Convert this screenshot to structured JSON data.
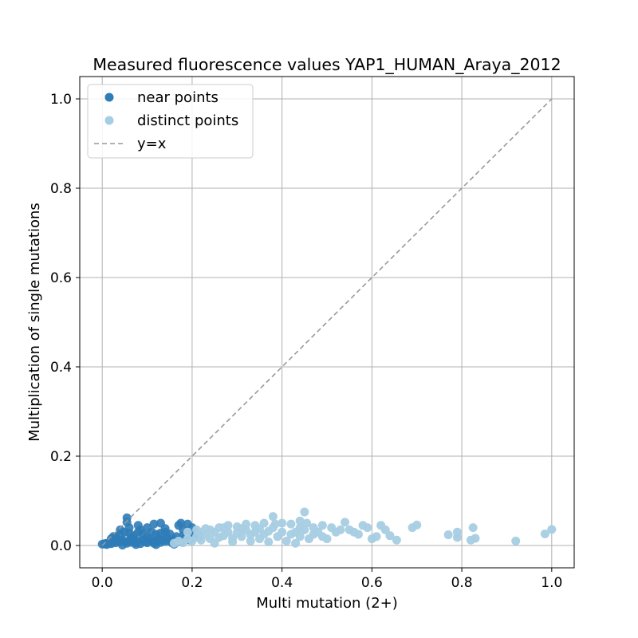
{
  "chart_data": {
    "type": "scatter",
    "title": "Measured fluorescence values YAP1_HUMAN_Araya_2012",
    "xlabel": "Multi mutation (2+)",
    "ylabel": "Multiplication of single mutations",
    "xlim": [
      -0.05,
      1.05
    ],
    "ylim": [
      -0.05,
      1.05
    ],
    "x_ticks": [
      "0.0",
      "0.2",
      "0.4",
      "0.6",
      "0.8",
      "1.0"
    ],
    "y_ticks": [
      "0.0",
      "0.2",
      "0.4",
      "0.6",
      "0.8",
      "1.0"
    ],
    "grid": true,
    "legend_position": "upper-left",
    "series": [
      {
        "name": "near points",
        "color": "#2f7cb7",
        "points": [
          [
            0.0,
            0.003
          ],
          [
            0.005,
            0.004
          ],
          [
            0.01,
            0.005
          ],
          [
            0.015,
            0.006
          ],
          [
            0.02,
            0.004
          ],
          [
            0.025,
            0.008
          ],
          [
            0.03,
            0.006
          ],
          [
            0.035,
            0.01
          ],
          [
            0.04,
            0.008
          ],
          [
            0.045,
            0.012
          ],
          [
            0.05,
            0.009
          ],
          [
            0.055,
            0.005
          ],
          [
            0.06,
            0.011
          ],
          [
            0.065,
            0.007
          ],
          [
            0.07,
            0.013
          ],
          [
            0.075,
            0.006
          ],
          [
            0.08,
            0.01
          ],
          [
            0.085,
            0.004
          ],
          [
            0.09,
            0.012
          ],
          [
            0.095,
            0.008
          ],
          [
            0.1,
            0.006
          ],
          [
            0.105,
            0.014
          ],
          [
            0.11,
            0.009
          ],
          [
            0.115,
            0.005
          ],
          [
            0.12,
            0.011
          ],
          [
            0.125,
            0.016
          ],
          [
            0.13,
            0.007
          ],
          [
            0.135,
            0.012
          ],
          [
            0.14,
            0.009
          ],
          [
            0.145,
            0.018
          ],
          [
            0.15,
            0.01
          ],
          [
            0.155,
            0.006
          ],
          [
            0.16,
            0.014
          ],
          [
            0.165,
            0.02
          ],
          [
            0.17,
            0.012
          ],
          [
            0.175,
            0.008
          ],
          [
            0.18,
            0.022
          ],
          [
            0.185,
            0.016
          ],
          [
            0.19,
            0.026
          ],
          [
            0.195,
            0.012
          ],
          [
            0.2,
            0.028
          ],
          [
            0.205,
            0.018
          ],
          [
            0.21,
            0.03
          ],
          [
            0.215,
            0.02
          ],
          [
            0.02,
            0.015
          ],
          [
            0.03,
            0.02
          ],
          [
            0.04,
            0.025
          ],
          [
            0.05,
            0.03
          ],
          [
            0.06,
            0.028
          ],
          [
            0.07,
            0.022
          ],
          [
            0.08,
            0.03
          ],
          [
            0.09,
            0.026
          ],
          [
            0.1,
            0.02
          ],
          [
            0.11,
            0.03
          ],
          [
            0.12,
            0.025
          ],
          [
            0.13,
            0.028
          ],
          [
            0.14,
            0.03
          ],
          [
            0.15,
            0.026
          ],
          [
            0.06,
            0.04
          ],
          [
            0.055,
            0.062
          ],
          [
            0.08,
            0.045
          ],
          [
            0.115,
            0.048
          ],
          [
            0.13,
            0.05
          ],
          [
            0.055,
            0.052
          ],
          [
            0.085,
            0.035
          ],
          [
            0.175,
            0.05
          ],
          [
            0.17,
            0.045
          ],
          [
            0.19,
            0.048
          ],
          [
            0.2,
            0.04
          ],
          [
            0.18,
            0.035
          ],
          [
            0.01,
            0.002
          ],
          [
            0.045,
            0.001
          ],
          [
            0.075,
            0.002
          ],
          [
            0.12,
            0.002
          ],
          [
            0.16,
            0.003
          ],
          [
            0.1,
            0.04
          ],
          [
            0.14,
            0.038
          ],
          [
            0.04,
            0.035
          ],
          [
            0.025,
            0.02
          ],
          [
            0.065,
            0.018
          ]
        ]
      },
      {
        "name": "distinct points",
        "color": "#a6cee3",
        "points": [
          [
            0.16,
            0.005
          ],
          [
            0.17,
            0.01
          ],
          [
            0.18,
            0.006
          ],
          [
            0.19,
            0.015
          ],
          [
            0.2,
            0.01
          ],
          [
            0.21,
            0.02
          ],
          [
            0.22,
            0.012
          ],
          [
            0.23,
            0.025
          ],
          [
            0.24,
            0.015
          ],
          [
            0.25,
            0.03
          ],
          [
            0.26,
            0.018
          ],
          [
            0.27,
            0.022
          ],
          [
            0.28,
            0.03
          ],
          [
            0.29,
            0.016
          ],
          [
            0.3,
            0.028
          ],
          [
            0.31,
            0.02
          ],
          [
            0.32,
            0.035
          ],
          [
            0.33,
            0.024
          ],
          [
            0.34,
            0.03
          ],
          [
            0.35,
            0.038
          ],
          [
            0.36,
            0.025
          ],
          [
            0.37,
            0.032
          ],
          [
            0.38,
            0.04
          ],
          [
            0.39,
            0.02
          ],
          [
            0.4,
            0.03
          ],
          [
            0.41,
            0.01
          ],
          [
            0.42,
            0.025
          ],
          [
            0.43,
            0.03
          ],
          [
            0.44,
            0.02
          ],
          [
            0.45,
            0.035
          ],
          [
            0.46,
            0.015
          ],
          [
            0.47,
            0.025
          ],
          [
            0.48,
            0.03
          ],
          [
            0.49,
            0.02
          ],
          [
            0.5,
            0.015
          ],
          [
            0.22,
            0.03
          ],
          [
            0.24,
            0.035
          ],
          [
            0.26,
            0.04
          ],
          [
            0.28,
            0.045
          ],
          [
            0.3,
            0.042
          ],
          [
            0.32,
            0.048
          ],
          [
            0.34,
            0.045
          ],
          [
            0.36,
            0.05
          ],
          [
            0.38,
            0.065
          ],
          [
            0.385,
            0.048
          ],
          [
            0.4,
            0.05
          ],
          [
            0.42,
            0.048
          ],
          [
            0.44,
            0.055
          ],
          [
            0.45,
            0.075
          ],
          [
            0.455,
            0.05
          ],
          [
            0.47,
            0.04
          ],
          [
            0.49,
            0.045
          ],
          [
            0.51,
            0.04
          ],
          [
            0.52,
            0.03
          ],
          [
            0.53,
            0.035
          ],
          [
            0.54,
            0.052
          ],
          [
            0.55,
            0.035
          ],
          [
            0.56,
            0.03
          ],
          [
            0.57,
            0.025
          ],
          [
            0.58,
            0.045
          ],
          [
            0.59,
            0.04
          ],
          [
            0.6,
            0.015
          ],
          [
            0.61,
            0.02
          ],
          [
            0.62,
            0.045
          ],
          [
            0.63,
            0.035
          ],
          [
            0.64,
            0.022
          ],
          [
            0.655,
            0.012
          ],
          [
            0.69,
            0.04
          ],
          [
            0.7,
            0.046
          ],
          [
            0.77,
            0.024
          ],
          [
            0.79,
            0.03
          ],
          [
            0.79,
            0.018
          ],
          [
            0.82,
            0.012
          ],
          [
            0.825,
            0.04
          ],
          [
            0.83,
            0.016
          ],
          [
            0.92,
            0.01
          ],
          [
            0.985,
            0.026
          ],
          [
            1.0,
            0.036
          ],
          [
            0.33,
            0.01
          ],
          [
            0.37,
            0.008
          ],
          [
            0.43,
            0.005
          ],
          [
            0.25,
            0.005
          ],
          [
            0.29,
            0.008
          ],
          [
            0.35,
            0.015
          ],
          [
            0.27,
            0.04
          ],
          [
            0.31,
            0.038
          ],
          [
            0.23,
            0.038
          ],
          [
            0.21,
            0.035
          ],
          [
            0.19,
            0.03
          ],
          [
            0.44,
            0.04
          ]
        ]
      }
    ],
    "reference_line": {
      "name": "y=x",
      "color": "#999999",
      "from": [
        0,
        0
      ],
      "to": [
        1,
        1
      ]
    }
  }
}
